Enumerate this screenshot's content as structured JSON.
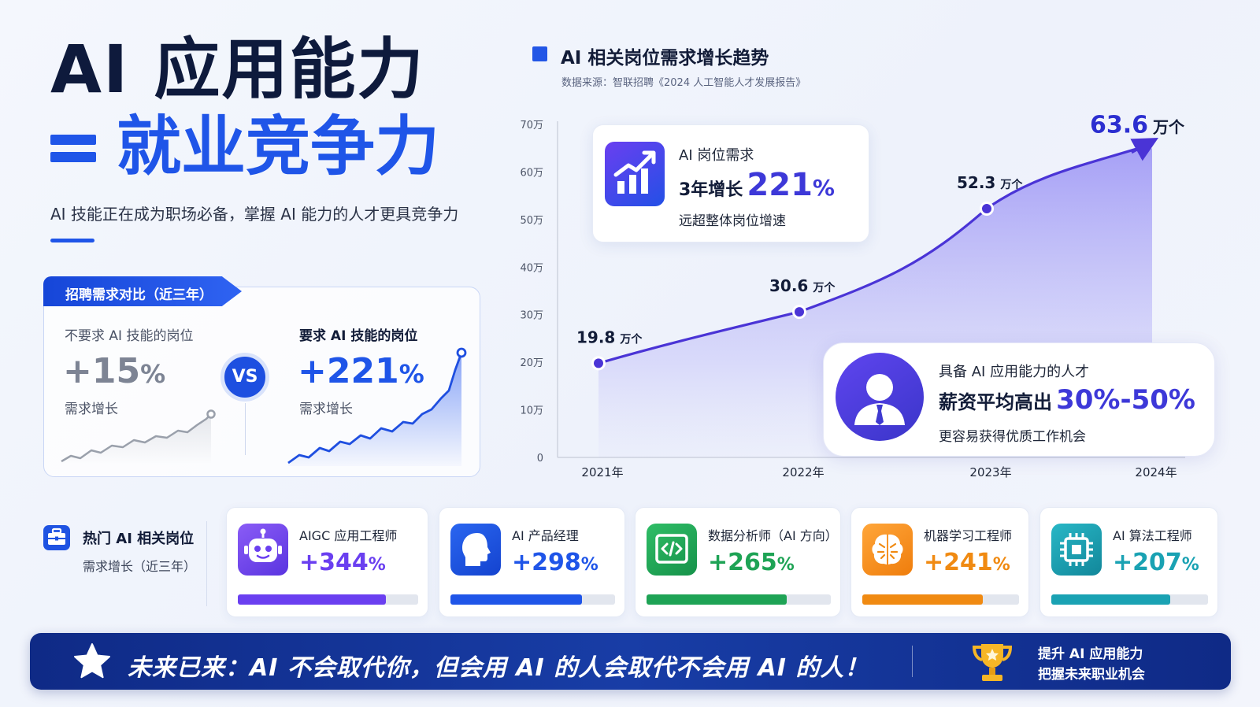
{
  "hero": {
    "title": "AI 应用能力",
    "subtitle": "就业竞争力",
    "description": "AI 技能正在成为职场必备，掌握 AI 能力的人才更具竞争力"
  },
  "comparison": {
    "tab_label": "招聘需求对比（近三年）",
    "left": {
      "label": "不要求 AI 技能的岗位",
      "value": "+15",
      "unit": "%",
      "note": "需求增长"
    },
    "vs": "VS",
    "right": {
      "label": "要求 AI 技能的岗位",
      "value": "+221",
      "unit": "%",
      "note": "需求增长"
    }
  },
  "chart_header": {
    "title": "AI 相关岗位需求增长趋势",
    "source": "数据来源：智联招聘《2024 人工智能人才发展报告》"
  },
  "chart_data": {
    "type": "area",
    "title": "AI 相关岗位需求增长趋势",
    "x": [
      "2021年",
      "2022年",
      "2023年",
      "2024年"
    ],
    "values": [
      19.8,
      30.6,
      52.3,
      63.6
    ],
    "value_labels": [
      "19.8",
      "30.6",
      "52.3",
      "63.6"
    ],
    "unit": "万个",
    "yticks": [
      "0",
      "10万",
      "20万",
      "30万",
      "40万",
      "50万",
      "60万",
      "70万"
    ],
    "ylim": [
      0,
      70
    ],
    "xlabel": "",
    "ylabel": "",
    "color": "#4a34d6",
    "grid": false
  },
  "stat_card": {
    "line1": "AI 岗位需求",
    "prefix": "3年增长",
    "value": "221",
    "unit": "%",
    "note": "远超整体岗位增速"
  },
  "talent_card": {
    "line1": "具备 AI 应用能力的人才",
    "prefix": "薪资平均高出",
    "value": "30%-50%",
    "note": "更容易获得优质工作机会"
  },
  "hot_jobs": {
    "title": "热门 AI 相关岗位",
    "subtitle": "需求增长（近三年）",
    "items": [
      {
        "name": "AIGC 应用工程师",
        "value": "+344",
        "unit": "%",
        "fill": 0.82,
        "color": "#6a3ff0",
        "icon": "robot-icon"
      },
      {
        "name": "AI 产品经理",
        "value": "+298",
        "unit": "%",
        "fill": 0.8,
        "color": "#1f55e8",
        "icon": "head-profile-icon"
      },
      {
        "name": "数据分析师（AI 方向）",
        "value": "+265",
        "unit": "%",
        "fill": 0.76,
        "color": "#1ea355",
        "icon": "code-icon"
      },
      {
        "name": "机器学习工程师",
        "value": "+241",
        "unit": "%",
        "fill": 0.77,
        "color": "#f08a12",
        "icon": "brain-icon"
      },
      {
        "name": "AI 算法工程师",
        "value": "+207",
        "unit": "%",
        "fill": 0.76,
        "color": "#1aa2b3",
        "icon": "chip-icon"
      }
    ]
  },
  "banner": {
    "text": "未来已来：AI 不会取代你，但会用 AI 的人会取代不会用 AI 的人！",
    "right_line1": "提升 AI 应用能力",
    "right_line2": "把握未来职业机会"
  }
}
